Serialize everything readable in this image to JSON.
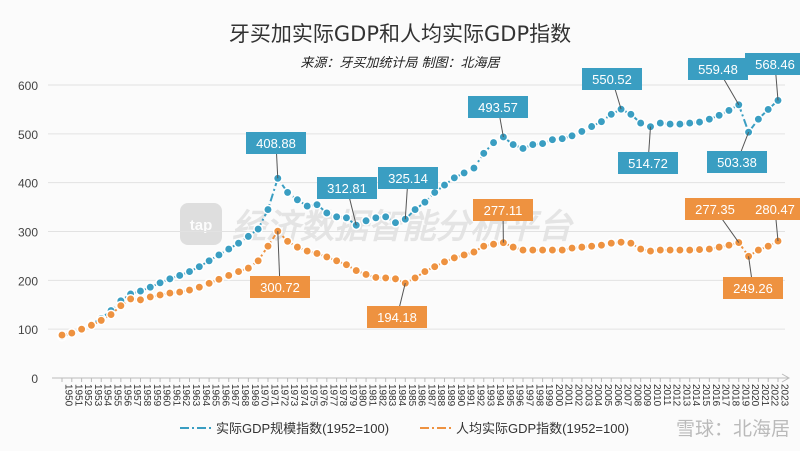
{
  "chart_data": {
    "type": "line",
    "title": "牙买加实际GDP和人均实际GDP指数",
    "subtitle": "来源：牙买加统计局 制图：北海居",
    "xlabel": "",
    "ylabel": "",
    "ylim": [
      0,
      600
    ],
    "yticks": [
      0,
      100,
      200,
      300,
      400,
      500,
      600
    ],
    "grid": true,
    "legend_position": "bottom",
    "x": [
      1950,
      1951,
      1952,
      1953,
      1954,
      1955,
      1956,
      1957,
      1958,
      1959,
      1960,
      1961,
      1962,
      1963,
      1964,
      1965,
      1966,
      1967,
      1968,
      1969,
      1970,
      1971,
      1972,
      1973,
      1974,
      1975,
      1976,
      1977,
      1978,
      1979,
      1980,
      1981,
      1982,
      1983,
      1984,
      1985,
      1986,
      1987,
      1988,
      1989,
      1990,
      1991,
      1992,
      1993,
      1994,
      1995,
      1996,
      1997,
      1998,
      1999,
      2000,
      2001,
      2002,
      2003,
      2004,
      2005,
      2006,
      2007,
      2008,
      2009,
      2010,
      2011,
      2012,
      2013,
      2014,
      2015,
      2016,
      2017,
      2018,
      2019,
      2020,
      2021,
      2022,
      2023
    ],
    "series": [
      {
        "name": "实际GDP规模指数(1952=100)",
        "color": "#3a9ec2",
        "values": [
          85,
          92,
          100,
          110,
          122,
          138,
          158,
          172,
          178,
          186,
          195,
          203,
          210,
          218,
          228,
          240,
          252,
          264,
          276,
          290,
          305,
          345,
          408.88,
          380,
          365,
          352,
          355,
          338,
          330,
          328,
          312.81,
          322,
          328,
          330,
          318,
          325.14,
          345,
          360,
          380,
          395,
          410,
          420,
          430,
          460,
          482,
          493.57,
          478,
          470,
          478,
          480,
          488,
          490,
          496,
          505,
          515,
          525,
          540,
          550.52,
          540,
          522,
          514.72,
          522,
          520,
          520,
          522,
          524,
          530,
          538,
          548,
          559.48,
          503.38,
          530,
          550,
          568.46
        ]
      },
      {
        "name": "人均实际GDP指数(1952=100)",
        "color": "#ee9240",
        "values": [
          88,
          92,
          100,
          108,
          118,
          130,
          148,
          162,
          160,
          166,
          170,
          174,
          176,
          180,
          186,
          194,
          202,
          210,
          218,
          225,
          240,
          270,
          300.72,
          280,
          268,
          260,
          255,
          248,
          240,
          232,
          220,
          212,
          206,
          205,
          203,
          194.18,
          205,
          218,
          228,
          238,
          246,
          252,
          258,
          270,
          274,
          277.11,
          268,
          262,
          262,
          262,
          262,
          262,
          266,
          268,
          270,
          272,
          276,
          278,
          276,
          264,
          260,
          262,
          262,
          262,
          262,
          263,
          264,
          268,
          272,
          277.35,
          249.26,
          262,
          270,
          280.47
        ]
      }
    ],
    "annotations": [
      {
        "series": 0,
        "year": 1972,
        "label": "408.88"
      },
      {
        "series": 0,
        "year": 1980,
        "label": "312.81"
      },
      {
        "series": 0,
        "year": 1985,
        "label": "325.14"
      },
      {
        "series": 0,
        "year": 1995,
        "label": "493.57"
      },
      {
        "series": 0,
        "year": 2007,
        "label": "550.52"
      },
      {
        "series": 0,
        "year": 2010,
        "label": "514.72"
      },
      {
        "series": 0,
        "year": 2019,
        "label": "559.48"
      },
      {
        "series": 0,
        "year": 2020,
        "label": "503.38"
      },
      {
        "series": 0,
        "year": 2023,
        "label": "568.46"
      },
      {
        "series": 1,
        "year": 1972,
        "label": "300.72"
      },
      {
        "series": 1,
        "year": 1985,
        "label": "194.18"
      },
      {
        "series": 1,
        "year": 1995,
        "label": "277.11"
      },
      {
        "series": 1,
        "year": 2019,
        "label": "277.35"
      },
      {
        "series": 1,
        "year": 2020,
        "label": "249.26"
      },
      {
        "series": 1,
        "year": 2023,
        "label": "280.47"
      }
    ]
  },
  "watermarks": {
    "platform_logo": "tap",
    "platform": "经济数据智能分析平台",
    "source": "雪球：北海居"
  }
}
